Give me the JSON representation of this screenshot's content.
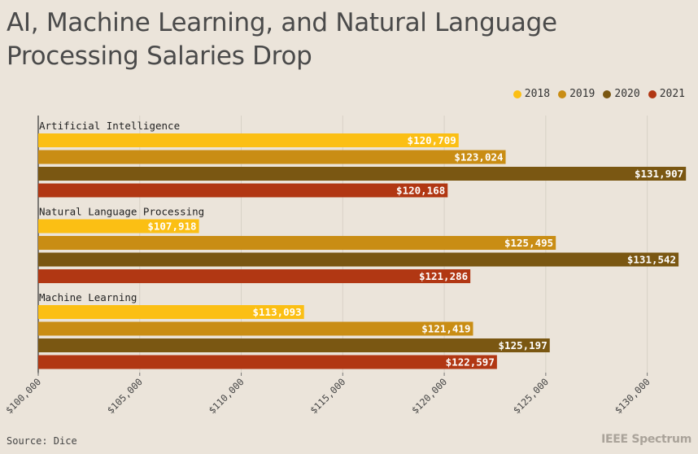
{
  "header": {
    "title": "AI, Machine Learning, and Natural Language Processing Salaries Drop"
  },
  "footer": {
    "source": "Source: Dice",
    "brand": "IEEE Spectrum"
  },
  "chart_data": {
    "type": "bar",
    "orientation": "horizontal",
    "title": "AI, Machine Learning, and Natural Language Processing Salaries Drop",
    "categories": [
      "Artificial Intelligence",
      "Natural Language Processing",
      "Machine Learning"
    ],
    "series": [
      {
        "name": "2018",
        "color": "#fbbf14",
        "values": [
          120709,
          107918,
          113093
        ],
        "labels": [
          "$120,709",
          "$107,918",
          "$113,093"
        ]
      },
      {
        "name": "2019",
        "color": "#c98d14",
        "values": [
          123024,
          125495,
          121419
        ],
        "labels": [
          "$123,024",
          "$125,495",
          "$121,419"
        ]
      },
      {
        "name": "2020",
        "color": "#7a5712",
        "values": [
          131907,
          131542,
          125197
        ],
        "labels": [
          "$131,907",
          "$131,542",
          "$125,197"
        ]
      },
      {
        "name": "2021",
        "color": "#b13713",
        "values": [
          120168,
          121286,
          122597
        ],
        "labels": [
          "$120,168",
          "$121,286",
          "$122,597"
        ]
      }
    ],
    "xlim": [
      100000,
      132500
    ],
    "xticks": [
      100000,
      105000,
      110000,
      115000,
      120000,
      125000,
      130000
    ],
    "xtick_labels": [
      "$100,000",
      "$105,000",
      "$110,000",
      "$115,000",
      "$120,000",
      "$125,000",
      "$130,000"
    ],
    "grid": true,
    "legend_position": "top-right"
  }
}
